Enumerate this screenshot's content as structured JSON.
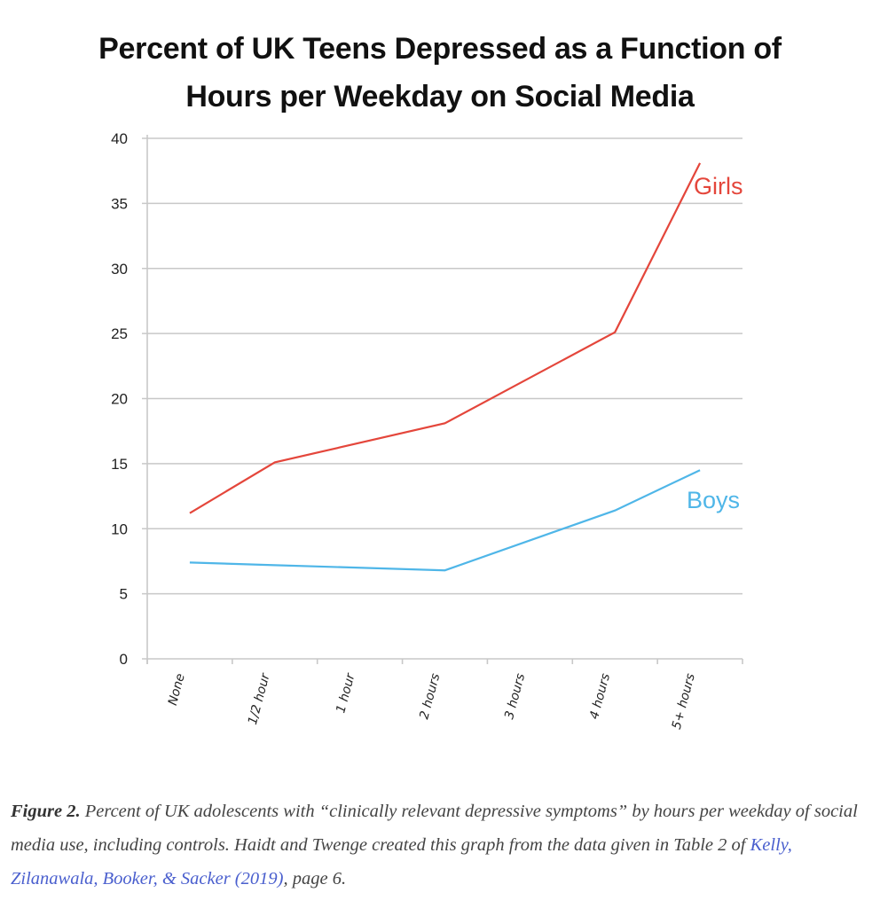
{
  "title_lines": [
    "Percent of UK Teens Depressed as a Function of",
    "Hours per Weekday on Social Media"
  ],
  "chart_data": {
    "type": "line",
    "title": "Percent of UK Teens Depressed as a Function of Hours per Weekday on Social Media",
    "xlabel": "",
    "ylabel": "",
    "categories": [
      "None",
      "1/2 hour",
      "1 hour",
      "2 hours",
      "3 hours",
      "4 hours",
      "5+ hours"
    ],
    "ylim": [
      0,
      40
    ],
    "yticks": [
      0,
      5,
      10,
      15,
      20,
      25,
      30,
      35,
      40
    ],
    "grid": true,
    "legend": "inline labels at line ends (right)",
    "series": [
      {
        "name": "Girls",
        "color": "#e4463b",
        "values": [
          11.2,
          15.1,
          null,
          18.1,
          null,
          25.1,
          38.1
        ]
      },
      {
        "name": "Boys",
        "color": "#4fb6e8",
        "values": [
          7.4,
          7.2,
          null,
          6.8,
          null,
          11.4,
          14.5
        ]
      }
    ]
  },
  "caption": {
    "figure_label": "Figure 2.",
    "text_before_link": " Percent of UK adolescents with “clinically relevant depressive symptoms” by hours per weekday of social media use, including controls. Haidt and Twenge created this graph from the data given in Table 2 of ",
    "link_text": "Kelly, Zilanawala, Booker, & Sacker (2019)",
    "text_after_link": ", page 6."
  }
}
